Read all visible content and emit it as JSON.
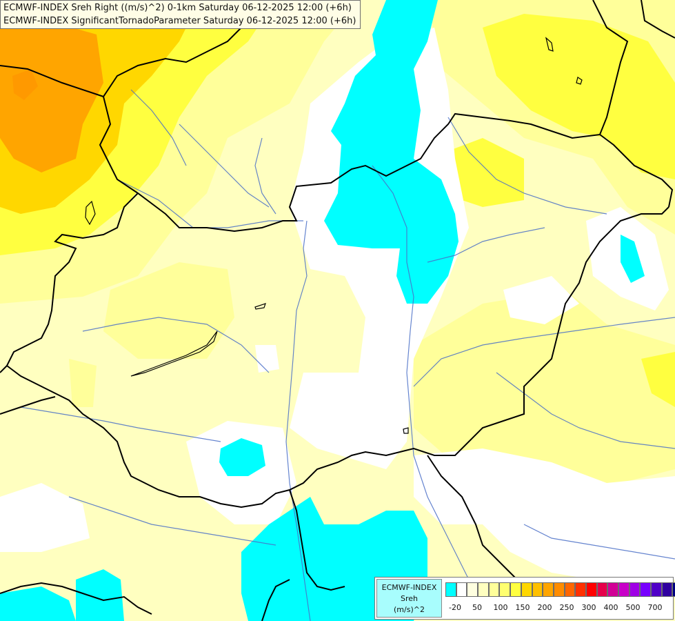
{
  "header": {
    "line1": "ECMWF-INDEX Sreh Right ((m/s)^2) 0-1km Saturday 06-12-2025 12:00 (+6h)",
    "line2": "ECMWF-INDEX SignificantTornadoParameter Saturday 06-12-2025 12:00 (+6h)"
  },
  "legend": {
    "title": "ECMWF-INDEX",
    "variable": "Sreh",
    "unit": "(m/s)^2",
    "colors": [
      "#00ffff",
      "#ffffff",
      "#ffffe0",
      "#ffffc0",
      "#ffff9a",
      "#ffff70",
      "#ffff40",
      "#ffd700",
      "#ffc000",
      "#ffa500",
      "#ff8c00",
      "#ff6600",
      "#ff3000",
      "#ff0000",
      "#e6004b",
      "#d20096",
      "#c800c8",
      "#a000e6",
      "#7800ff",
      "#5000c8",
      "#3000a0",
      "#000080"
    ],
    "ticks": [
      "-20",
      "50",
      "100",
      "150",
      "200",
      "250",
      "300",
      "400",
      "500",
      "700"
    ]
  },
  "map": {
    "colors": {
      "cyan": "#00ffff",
      "white": "#ffffff",
      "pale_yellow": "#ffffc0",
      "light_yellow": "#ffff9a",
      "yellow": "#ffff40",
      "gold": "#ffd700",
      "orange": "#ffa500",
      "border": "#000000",
      "river": "#4a6fc7"
    }
  }
}
